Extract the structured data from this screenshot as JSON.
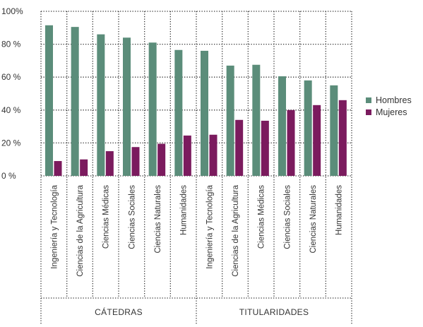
{
  "chart_data": {
    "type": "bar",
    "title": "",
    "xlabel": "",
    "ylabel": "",
    "ylim": [
      0,
      100
    ],
    "yticks": [
      0,
      20,
      40,
      60,
      80,
      100
    ],
    "ytick_labels": [
      "0 %",
      "20 %",
      "40 %",
      "60 %",
      "80 %",
      "100%"
    ],
    "grid": true,
    "legend_position": "right",
    "groups": [
      {
        "label": "CÁTEDRAS",
        "categories": [
          "Ingeniería y Tecnología",
          "Ciencias de la Agricultura",
          "Ciencias Médicas",
          "Ciencias Sociales",
          "Ciencias Naturales",
          "Humanidades"
        ]
      },
      {
        "label": "TITULARIDADES",
        "categories": [
          "Ingeniería y Tecnología",
          "Ciencias de la Agricultura",
          "Ciencias Médicas",
          "Ciencias Sociales",
          "Ciencias Naturales",
          "Humanidades"
        ]
      }
    ],
    "series": [
      {
        "name": "Hombres",
        "color": "#5b8d7a",
        "values": [
          91.5,
          90.5,
          86,
          84,
          81,
          76.5,
          76,
          67,
          67.5,
          60.5,
          58,
          55
        ]
      },
      {
        "name": "Mujeres",
        "color": "#7b1b5e",
        "values": [
          9,
          10,
          15,
          17.5,
          19.5,
          24.5,
          25,
          34,
          33.5,
          40,
          43,
          46
        ]
      }
    ]
  }
}
